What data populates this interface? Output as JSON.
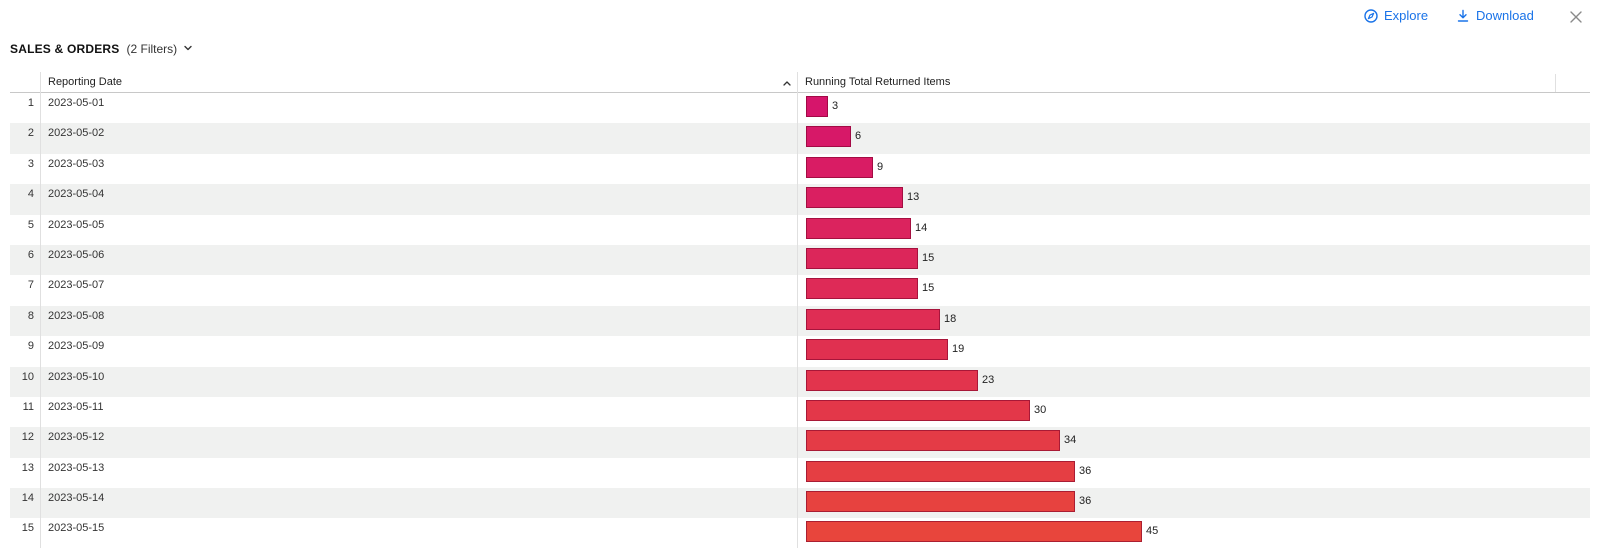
{
  "toolbar": {
    "explore_label": "Explore",
    "download_label": "Download",
    "explore_icon": "compass-icon",
    "download_icon": "download-icon",
    "close_icon": "close-icon"
  },
  "panel": {
    "title": "SALES & ORDERS",
    "filters": "(2 Filters)"
  },
  "table": {
    "columns": [
      "Reporting Date",
      "Running Total Returned Items"
    ],
    "sort_icon": "chevron-up-icon",
    "bar_colors": {
      "start": "#d6156b",
      "end": "#e8453c"
    },
    "max_value": 60,
    "rows": [
      {
        "index": "1",
        "date": "2023-05-01",
        "value": 3
      },
      {
        "index": "2",
        "date": "2023-05-02",
        "value": 6
      },
      {
        "index": "3",
        "date": "2023-05-03",
        "value": 9
      },
      {
        "index": "4",
        "date": "2023-05-04",
        "value": 13
      },
      {
        "index": "5",
        "date": "2023-05-05",
        "value": 14
      },
      {
        "index": "6",
        "date": "2023-05-06",
        "value": 15
      },
      {
        "index": "7",
        "date": "2023-05-07",
        "value": 15
      },
      {
        "index": "8",
        "date": "2023-05-08",
        "value": 18
      },
      {
        "index": "9",
        "date": "2023-05-09",
        "value": 19
      },
      {
        "index": "10",
        "date": "2023-05-10",
        "value": 23
      },
      {
        "index": "11",
        "date": "2023-05-11",
        "value": 30
      },
      {
        "index": "12",
        "date": "2023-05-12",
        "value": 34
      },
      {
        "index": "13",
        "date": "2023-05-13",
        "value": 36
      },
      {
        "index": "14",
        "date": "2023-05-14",
        "value": 36
      },
      {
        "index": "15",
        "date": "2023-05-15",
        "value": 45
      }
    ]
  }
}
